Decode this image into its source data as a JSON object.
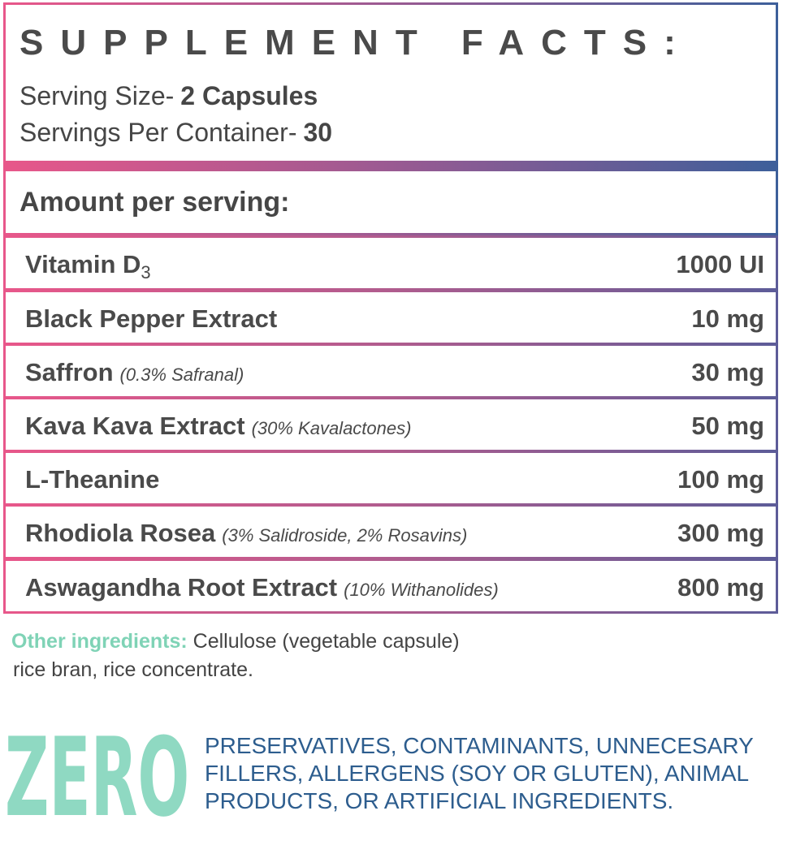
{
  "header": {
    "title": "SUPPLEMENT FACTS:",
    "serving_size_label": "Serving Size-",
    "serving_size_value": "2 Capsules",
    "servings_label": "Servings Per Container-",
    "servings_value": "30"
  },
  "amount_heading": "Amount per serving:",
  "rows": [
    {
      "name": "Vitamin D",
      "sub": "3",
      "amount": "1000 UI"
    },
    {
      "name": "Black Pepper Extract",
      "amount": "10 mg"
    },
    {
      "name": "Saffron",
      "note": "(0.3% Safranal)",
      "amount": "30 mg"
    },
    {
      "name": "Kava Kava Extract",
      "note": "(30% Kavalactones)",
      "amount": "50 mg"
    },
    {
      "name": "L-Theanine",
      "amount": "100 mg"
    },
    {
      "name": "Rhodiola Rosea",
      "note": "(3% Salidroside, 2% Rosavins)",
      "amount": "300 mg"
    },
    {
      "name": "Aswagandha Root Extract",
      "note": "(10% Withanolides)",
      "amount": "800 mg"
    }
  ],
  "other": {
    "label": "Other ingredients:",
    "lines": [
      "Cellulose (vegetable capsule)",
      "rice bran, rice concentrate."
    ]
  },
  "zero": {
    "word": "ZERO",
    "lines": [
      "PRESERVATIVES, CONTAMINANTS, UNNECESARY",
      "FILLERS, ALLERGENS (SOY OR GLUTEN), ANIMAL",
      "PRODUCTS, OR ARTIFICIAL INGREDIENTS."
    ]
  }
}
